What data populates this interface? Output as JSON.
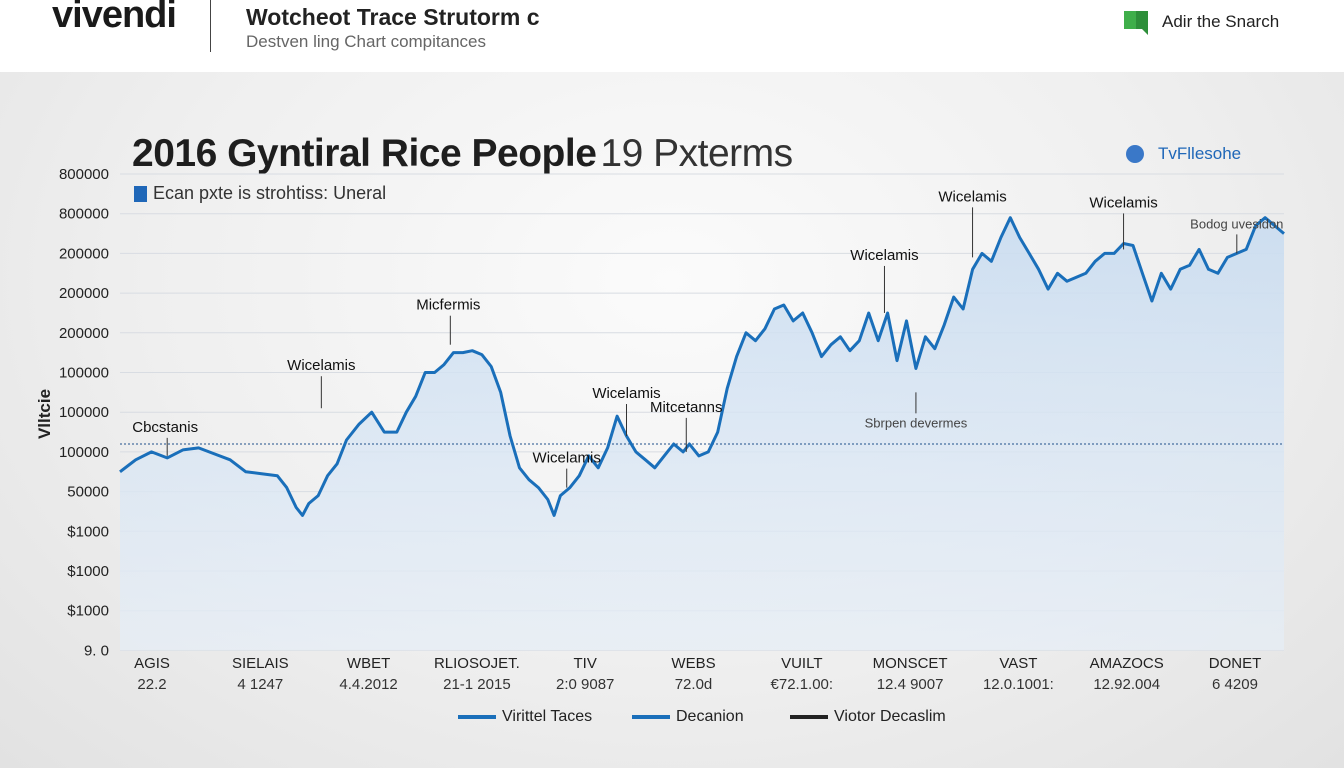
{
  "header": {
    "logo": "vivendi",
    "title": "Wotcheot Trace Strutorm c",
    "subtitle": "Destven ling Chart compitances",
    "search_label": "Adir the Snarch",
    "search_icon": "green-bookmark-icon"
  },
  "colors": {
    "line": "#1a6fba",
    "area": "#d6e4f3",
    "accent_green": "#4caf50",
    "legend_square": "#1f67b8"
  },
  "chart_data": {
    "type": "area",
    "title": "2016 Gyntiral Rice People",
    "title_suffix": "19 Pxterms",
    "subtitle": "Ecan pxte is strohtiss: Uneral",
    "top_legend": "TvFllesohe",
    "ylabel": "Vlltcie",
    "y_ticks": [
      "800000",
      "800000",
      "200000",
      "200000",
      "200000",
      "100000",
      "100000",
      "100000",
      "50000",
      "$1000",
      "$1000",
      "$1000",
      "9. 0"
    ],
    "reference_line_label": "100000",
    "x_categories": [
      {
        "name": "AGIS",
        "value": "22.2"
      },
      {
        "name": "SIELAIS",
        "value": "4 1247"
      },
      {
        "name": "WBET",
        "value": "4.4.2012"
      },
      {
        "name": "RLIOSOJET.",
        "value": "21-1 2015"
      },
      {
        "name": "TIV",
        "value": "2:0 9087"
      },
      {
        "name": "WEBS",
        "value": "72.0d"
      },
      {
        "name": "VUILT",
        "value": "€72.1.00:"
      },
      {
        "name": "MONSCET",
        "value": "12.4 9007"
      },
      {
        "name": "VAST",
        "value": "12.0.1001:"
      },
      {
        "name": "AMAZOCS",
        "value": "12.92.004"
      },
      {
        "name": "DONET",
        "value": "6 4209"
      }
    ],
    "series": [
      {
        "name": "Virittel Taces",
        "y_scale_label": "row index (12 = bottom '9. 0', 0 = top '800000')",
        "points": [
          [
            0,
            7.5
          ],
          [
            0.5,
            7.2
          ],
          [
            1,
            7.0
          ],
          [
            1.5,
            7.15
          ],
          [
            2,
            6.95
          ],
          [
            2.5,
            6.9
          ],
          [
            3,
            7.05
          ],
          [
            3.5,
            7.2
          ],
          [
            4,
            7.5
          ],
          [
            4.5,
            7.55
          ],
          [
            5,
            7.6
          ],
          [
            5.3,
            7.9
          ],
          [
            5.6,
            8.4
          ],
          [
            5.8,
            8.6
          ],
          [
            6,
            8.3
          ],
          [
            6.3,
            8.1
          ],
          [
            6.6,
            7.6
          ],
          [
            6.9,
            7.3
          ],
          [
            7.2,
            6.7
          ],
          [
            7.6,
            6.3
          ],
          [
            8,
            6.0
          ],
          [
            8.4,
            6.5
          ],
          [
            8.8,
            6.5
          ],
          [
            9.1,
            6.0
          ],
          [
            9.4,
            5.6
          ],
          [
            9.7,
            5.0
          ],
          [
            10,
            5.0
          ],
          [
            10.3,
            4.8
          ],
          [
            10.6,
            4.5
          ],
          [
            10.9,
            4.5
          ],
          [
            11.2,
            4.45
          ],
          [
            11.5,
            4.55
          ],
          [
            11.8,
            4.85
          ],
          [
            12.1,
            5.5
          ],
          [
            12.4,
            6.6
          ],
          [
            12.7,
            7.4
          ],
          [
            13,
            7.7
          ],
          [
            13.3,
            7.9
          ],
          [
            13.6,
            8.2
          ],
          [
            13.8,
            8.6
          ],
          [
            14,
            8.1
          ],
          [
            14.3,
            7.9
          ],
          [
            14.6,
            7.6
          ],
          [
            14.9,
            7.1
          ],
          [
            15.2,
            7.4
          ],
          [
            15.5,
            6.9
          ],
          [
            15.8,
            6.1
          ],
          [
            16.1,
            6.6
          ],
          [
            16.4,
            7.0
          ],
          [
            16.7,
            7.2
          ],
          [
            17,
            7.4
          ],
          [
            17.3,
            7.1
          ],
          [
            17.6,
            6.8
          ],
          [
            17.9,
            7.0
          ],
          [
            18.1,
            6.8
          ],
          [
            18.4,
            7.1
          ],
          [
            18.7,
            7.0
          ],
          [
            19.0,
            6.5
          ],
          [
            19.3,
            5.4
          ],
          [
            19.6,
            4.6
          ],
          [
            19.9,
            4.0
          ],
          [
            20.2,
            4.2
          ],
          [
            20.5,
            3.9
          ],
          [
            20.8,
            3.4
          ],
          [
            21.1,
            3.3
          ],
          [
            21.4,
            3.7
          ],
          [
            21.7,
            3.5
          ],
          [
            22,
            4.0
          ],
          [
            22.3,
            4.6
          ],
          [
            22.6,
            4.3
          ],
          [
            22.9,
            4.1
          ],
          [
            23.2,
            4.45
          ],
          [
            23.5,
            4.2
          ],
          [
            23.8,
            3.5
          ],
          [
            24.1,
            4.2
          ],
          [
            24.4,
            3.5
          ],
          [
            24.7,
            4.7
          ],
          [
            25,
            3.7
          ],
          [
            25.3,
            4.9
          ],
          [
            25.6,
            4.1
          ],
          [
            25.9,
            4.4
          ],
          [
            26.2,
            3.8
          ],
          [
            26.5,
            3.1
          ],
          [
            26.8,
            3.4
          ],
          [
            27.1,
            2.4
          ],
          [
            27.4,
            2.0
          ],
          [
            27.7,
            2.2
          ],
          [
            28.0,
            1.6
          ],
          [
            28.3,
            1.1
          ],
          [
            28.6,
            1.6
          ],
          [
            28.9,
            2.0
          ],
          [
            29.2,
            2.4
          ],
          [
            29.5,
            2.9
          ],
          [
            29.8,
            2.5
          ],
          [
            30.1,
            2.7
          ],
          [
            30.4,
            2.6
          ],
          [
            30.7,
            2.5
          ],
          [
            31.0,
            2.2
          ],
          [
            31.3,
            2.0
          ],
          [
            31.6,
            2.0
          ],
          [
            31.9,
            1.75
          ],
          [
            32.2,
            1.8
          ],
          [
            32.5,
            2.5
          ],
          [
            32.8,
            3.2
          ],
          [
            33.1,
            2.5
          ],
          [
            33.4,
            2.9
          ],
          [
            33.7,
            2.4
          ],
          [
            34.0,
            2.3
          ],
          [
            34.3,
            1.9
          ],
          [
            34.6,
            2.4
          ],
          [
            34.9,
            2.5
          ],
          [
            35.2,
            2.1
          ],
          [
            35.5,
            2.0
          ],
          [
            35.8,
            1.9
          ],
          [
            36.1,
            1.3
          ],
          [
            36.4,
            1.1
          ],
          [
            36.7,
            1.3
          ],
          [
            37.0,
            1.5
          ]
        ]
      }
    ],
    "annotations": [
      {
        "label": "Cbcstanis",
        "x": 1.5,
        "y": 7.1
      },
      {
        "label": "Wicelamis",
        "x": 6.4,
        "y": 5.9
      },
      {
        "label": "Micfermis",
        "x": 10.5,
        "y": 4.3
      },
      {
        "label": "Wicelamis",
        "x": 14.2,
        "y": 7.9
      },
      {
        "label": "Wicelamis",
        "x": 16.1,
        "y": 6.6
      },
      {
        "label": "Mitcetanns",
        "x": 18.0,
        "y": 7.0
      },
      {
        "label": "Wicelamis",
        "x": 24.3,
        "y": 3.5
      },
      {
        "label": "Wicelamis",
        "x": 27.1,
        "y": 2.1
      },
      {
        "label": "Wicelamis",
        "x": 31.9,
        "y": 1.9
      },
      {
        "label": "Sbrpen devermes",
        "x": 25.3,
        "y": 5.5
      },
      {
        "label": "Bodog uvesidon",
        "x": 35.5,
        "y": 2.0
      }
    ]
  },
  "legend": {
    "items": [
      {
        "label": "Virittel Taces",
        "color": "#1a6fba"
      },
      {
        "label": "Decanion",
        "color": "#1a6fba"
      },
      {
        "label": "Viotor Decaslim",
        "color": "#222222"
      }
    ]
  }
}
